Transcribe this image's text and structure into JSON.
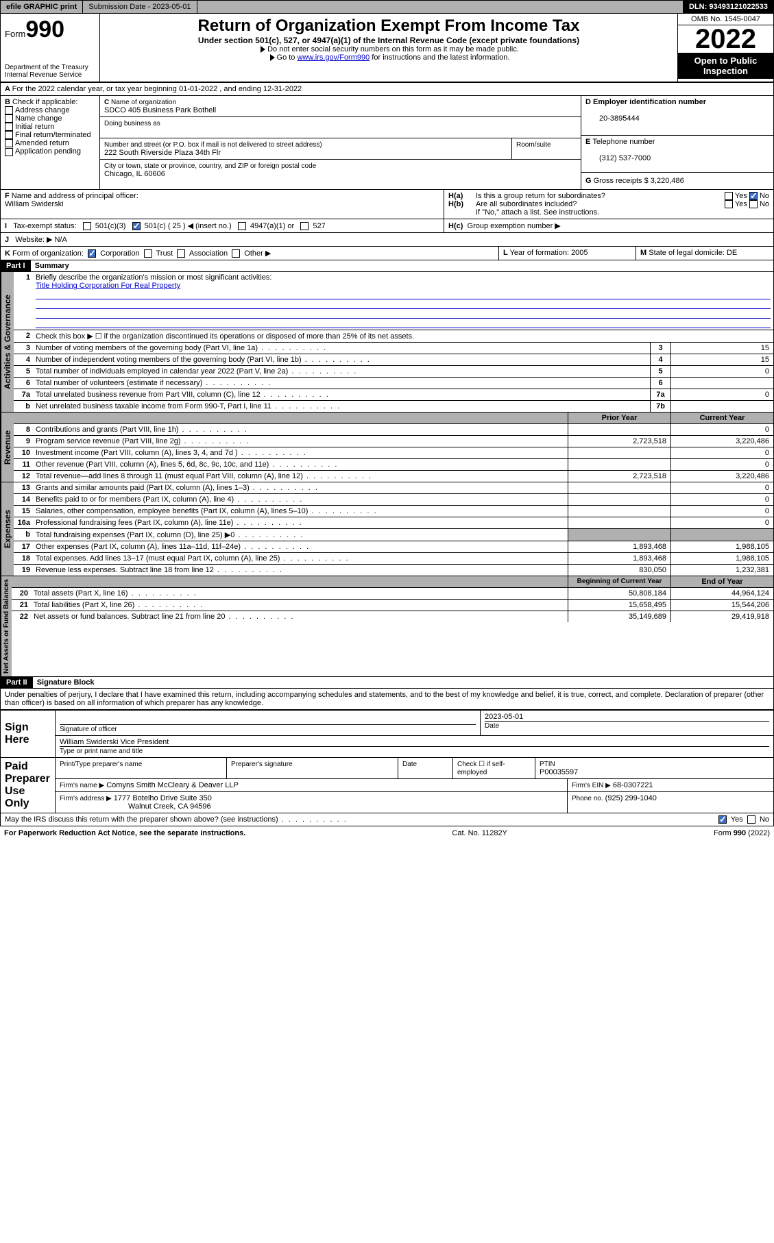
{
  "topbar": {
    "efile": "efile GRAPHIC print",
    "submission": "Submission Date - 2023-05-01",
    "dln": "DLN: 93493121022533"
  },
  "header": {
    "form_label": "Form",
    "form_no": "990",
    "dept": "Department of the Treasury",
    "irs": "Internal Revenue Service",
    "title": "Return of Organization Exempt From Income Tax",
    "sub1": "Under section 501(c), 527, or 4947(a)(1) of the Internal Revenue Code (except private foundations)",
    "sub2": "Do not enter social security numbers on this form as it may be made public.",
    "sub3_pre": "Go to ",
    "sub3_link": "www.irs.gov/Form990",
    "sub3_post": " for instructions and the latest information.",
    "omb": "OMB No. 1545-0047",
    "year": "2022",
    "open": "Open to Public Inspection"
  },
  "A": {
    "text": "For the 2022 calendar year, or tax year beginning 01-01-2022  , and ending 12-31-2022"
  },
  "B": {
    "label": "Check if applicable:",
    "opts": [
      "Address change",
      "Name change",
      "Initial return",
      "Final return/terminated",
      "Amended return",
      "Application pending"
    ]
  },
  "C": {
    "name_lbl": "Name of organization",
    "name": "SDCO 405 Business Park Bothell",
    "dba_lbl": "Doing business as",
    "addr_lbl": "Number and street (or P.O. box if mail is not delivered to street address)",
    "room_lbl": "Room/suite",
    "addr": "222 South Riverside Plaza 34th Flr",
    "city_lbl": "City or town, state or province, country, and ZIP or foreign postal code",
    "city": "Chicago, IL  60606"
  },
  "D": {
    "lbl": "Employer identification number",
    "val": "20-3895444"
  },
  "E": {
    "lbl": "Telephone number",
    "val": "(312) 537-7000"
  },
  "G": {
    "lbl": "Gross receipts $",
    "val": "3,220,486"
  },
  "F": {
    "lbl": "Name and address of principal officer:",
    "val": "William Swiderski"
  },
  "H": {
    "a": "Is this a group return for subordinates?",
    "b": "Are all subordinates included?",
    "b_note": "If \"No,\" attach a list. See instructions.",
    "c": "Group exemption number ▶",
    "yes": "Yes",
    "no": "No"
  },
  "I": {
    "lbl": "Tax-exempt status:",
    "o1": "501(c)(3)",
    "o2": "501(c) ( 25 ) ◀ (insert no.)",
    "o3": "4947(a)(1) or",
    "o4": "527"
  },
  "J": {
    "lbl": "Website: ▶",
    "val": "N/A"
  },
  "K": {
    "lbl": "Form of organization:",
    "o1": "Corporation",
    "o2": "Trust",
    "o3": "Association",
    "o4": "Other ▶"
  },
  "L": {
    "lbl": "Year of formation:",
    "val": "2005"
  },
  "M": {
    "lbl": "State of legal domicile:",
    "val": "DE"
  },
  "part1": {
    "hdr": "Part I",
    "title": "Summary",
    "l1": "Briefly describe the organization's mission or most significant activities:",
    "l1v": "Title Holding Corporation For Real Property",
    "l2": "Check this box ▶ ☐  if the organization discontinued its operations or disposed of more than 25% of its net assets.",
    "lines": [
      {
        "n": "3",
        "t": "Number of voting members of the governing body (Part VI, line 1a)",
        "b": "3",
        "v": "15"
      },
      {
        "n": "4",
        "t": "Number of independent voting members of the governing body (Part VI, line 1b)",
        "b": "4",
        "v": "15"
      },
      {
        "n": "5",
        "t": "Total number of individuals employed in calendar year 2022 (Part V, line 2a)",
        "b": "5",
        "v": "0"
      },
      {
        "n": "6",
        "t": "Total number of volunteers (estimate if necessary)",
        "b": "6",
        "v": ""
      },
      {
        "n": "7a",
        "t": "Total unrelated business revenue from Part VIII, column (C), line 12",
        "b": "7a",
        "v": "0"
      },
      {
        "n": "b",
        "t": "Net unrelated business taxable income from Form 990-T, Part I, line 11",
        "b": "7b",
        "v": ""
      }
    ],
    "col_prior": "Prior Year",
    "col_curr": "Current Year",
    "rev": [
      {
        "n": "8",
        "t": "Contributions and grants (Part VIII, line 1h)",
        "p": "",
        "c": "0"
      },
      {
        "n": "9",
        "t": "Program service revenue (Part VIII, line 2g)",
        "p": "2,723,518",
        "c": "3,220,486"
      },
      {
        "n": "10",
        "t": "Investment income (Part VIII, column (A), lines 3, 4, and 7d )",
        "p": "",
        "c": "0"
      },
      {
        "n": "11",
        "t": "Other revenue (Part VIII, column (A), lines 5, 6d, 8c, 9c, 10c, and 11e)",
        "p": "",
        "c": "0"
      },
      {
        "n": "12",
        "t": "Total revenue—add lines 8 through 11 (must equal Part VIII, column (A), line 12)",
        "p": "2,723,518",
        "c": "3,220,486"
      }
    ],
    "exp": [
      {
        "n": "13",
        "t": "Grants and similar amounts paid (Part IX, column (A), lines 1–3)",
        "p": "",
        "c": "0"
      },
      {
        "n": "14",
        "t": "Benefits paid to or for members (Part IX, column (A), line 4)",
        "p": "",
        "c": "0"
      },
      {
        "n": "15",
        "t": "Salaries, other compensation, employee benefits (Part IX, column (A), lines 5–10)",
        "p": "",
        "c": "0"
      },
      {
        "n": "16a",
        "t": "Professional fundraising fees (Part IX, column (A), line 11e)",
        "p": "",
        "c": "0"
      },
      {
        "n": "b",
        "t": "Total fundraising expenses (Part IX, column (D), line 25) ▶0",
        "p": "shade",
        "c": "shade"
      },
      {
        "n": "17",
        "t": "Other expenses (Part IX, column (A), lines 11a–11d, 11f–24e)",
        "p": "1,893,468",
        "c": "1,988,105"
      },
      {
        "n": "18",
        "t": "Total expenses. Add lines 13–17 (must equal Part IX, column (A), line 25)",
        "p": "1,893,468",
        "c": "1,988,105"
      },
      {
        "n": "19",
        "t": "Revenue less expenses. Subtract line 18 from line 12",
        "p": "830,050",
        "c": "1,232,381"
      }
    ],
    "col_beg": "Beginning of Current Year",
    "col_end": "End of Year",
    "net": [
      {
        "n": "20",
        "t": "Total assets (Part X, line 16)",
        "p": "50,808,184",
        "c": "44,964,124"
      },
      {
        "n": "21",
        "t": "Total liabilities (Part X, line 26)",
        "p": "15,658,495",
        "c": "15,544,206"
      },
      {
        "n": "22",
        "t": "Net assets or fund balances. Subtract line 21 from line 20",
        "p": "35,149,689",
        "c": "29,419,918"
      }
    ]
  },
  "tabs": {
    "gov": "Activities & Governance",
    "rev": "Revenue",
    "exp": "Expenses",
    "net": "Net Assets or Fund Balances"
  },
  "part2": {
    "hdr": "Part II",
    "title": "Signature Block",
    "decl": "Under penalties of perjury, I declare that I have examined this return, including accompanying schedules and statements, and to the best of my knowledge and belief, it is true, correct, and complete. Declaration of preparer (other than officer) is based on all information of which preparer has any knowledge.",
    "sign_here": "Sign Here",
    "sig_off": "Signature of officer",
    "date": "Date",
    "date_v": "2023-05-01",
    "name_title": "William Swiderski  Vice President",
    "name_lbl": "Type or print name and title",
    "paid": "Paid Preparer Use Only",
    "prep_name": "Print/Type preparer's name",
    "prep_sig": "Preparer's signature",
    "prep_date": "Date",
    "check_self": "Check ☐ if self-employed",
    "ptin_lbl": "PTIN",
    "ptin": "P00035597",
    "firm_name_lbl": "Firm's name  ▶",
    "firm_name": "Comyns Smith McCleary & Deaver LLP",
    "firm_ein_lbl": "Firm's EIN ▶",
    "firm_ein": "68-0307221",
    "firm_addr_lbl": "Firm's address ▶",
    "firm_addr1": "1777 Botelho Drive Suite 350",
    "firm_addr2": "Walnut Creek, CA  94596",
    "phone_lbl": "Phone no.",
    "phone": "(925) 299-1040",
    "discuss": "May the IRS discuss this return with the preparer shown above? (see instructions)",
    "yes": "Yes",
    "no": "No"
  },
  "footer": {
    "pra": "For Paperwork Reduction Act Notice, see the separate instructions.",
    "cat": "Cat. No. 11282Y",
    "form": "Form 990 (2022)"
  }
}
